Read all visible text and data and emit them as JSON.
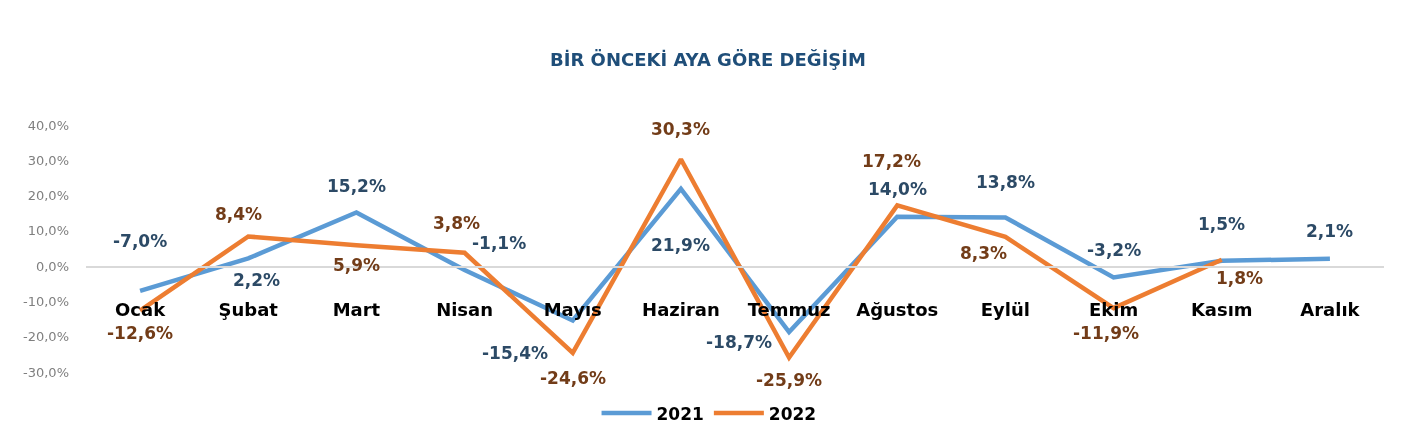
{
  "chart_data": {
    "type": "line",
    "title": "BİR ÖNCEKİ AYA GÖRE DEĞİŞİM",
    "categories": [
      "Ocak",
      "Şubat",
      "Mart",
      "Nisan",
      "Mayıs",
      "Haziran",
      "Temmuz",
      "Ağustos",
      "Eylül",
      "Ekim",
      "Kasım",
      "Aralık"
    ],
    "series": [
      {
        "name": "2021",
        "color": "#5b9bd5",
        "values": [
          -7.0,
          2.2,
          15.2,
          -1.1,
          -15.4,
          21.9,
          -18.7,
          14.0,
          13.8,
          -3.2,
          1.5,
          2.1
        ],
        "value_labels": [
          "-7,0%",
          "2,2%",
          "15,2%",
          "-1,1%",
          "-15,4%",
          "21,9%",
          "-18,7%",
          "14,0%",
          "13,8%",
          "-3,2%",
          "1,5%",
          "2,1%"
        ]
      },
      {
        "name": "2022",
        "color": "#ed7d31",
        "values": [
          -12.6,
          8.4,
          5.9,
          3.8,
          -24.6,
          30.3,
          -25.9,
          17.2,
          8.3,
          -11.9,
          1.8,
          null
        ],
        "value_labels": [
          "-12,6%",
          "8,4%",
          "5,9%",
          "3,8%",
          "-24,6%",
          "30,3%",
          "-25,9%",
          "17,2%",
          "8,3%",
          "-11,9%",
          "1,8%",
          null
        ]
      }
    ],
    "ylim": [
      -30,
      40
    ],
    "yticks": [
      {
        "value": -30,
        "label": "-30,0%"
      },
      {
        "value": -20,
        "label": "-20,0%"
      },
      {
        "value": -10,
        "label": "-10,0%"
      },
      {
        "value": 0,
        "label": "0,0%"
      },
      {
        "value": 10,
        "label": "10,0%"
      },
      {
        "value": 20,
        "label": "20,0%"
      },
      {
        "value": 30,
        "label": "30,0%"
      },
      {
        "value": 40,
        "label": "40,0%"
      }
    ],
    "legend": "bottom",
    "line_style": "solid"
  }
}
